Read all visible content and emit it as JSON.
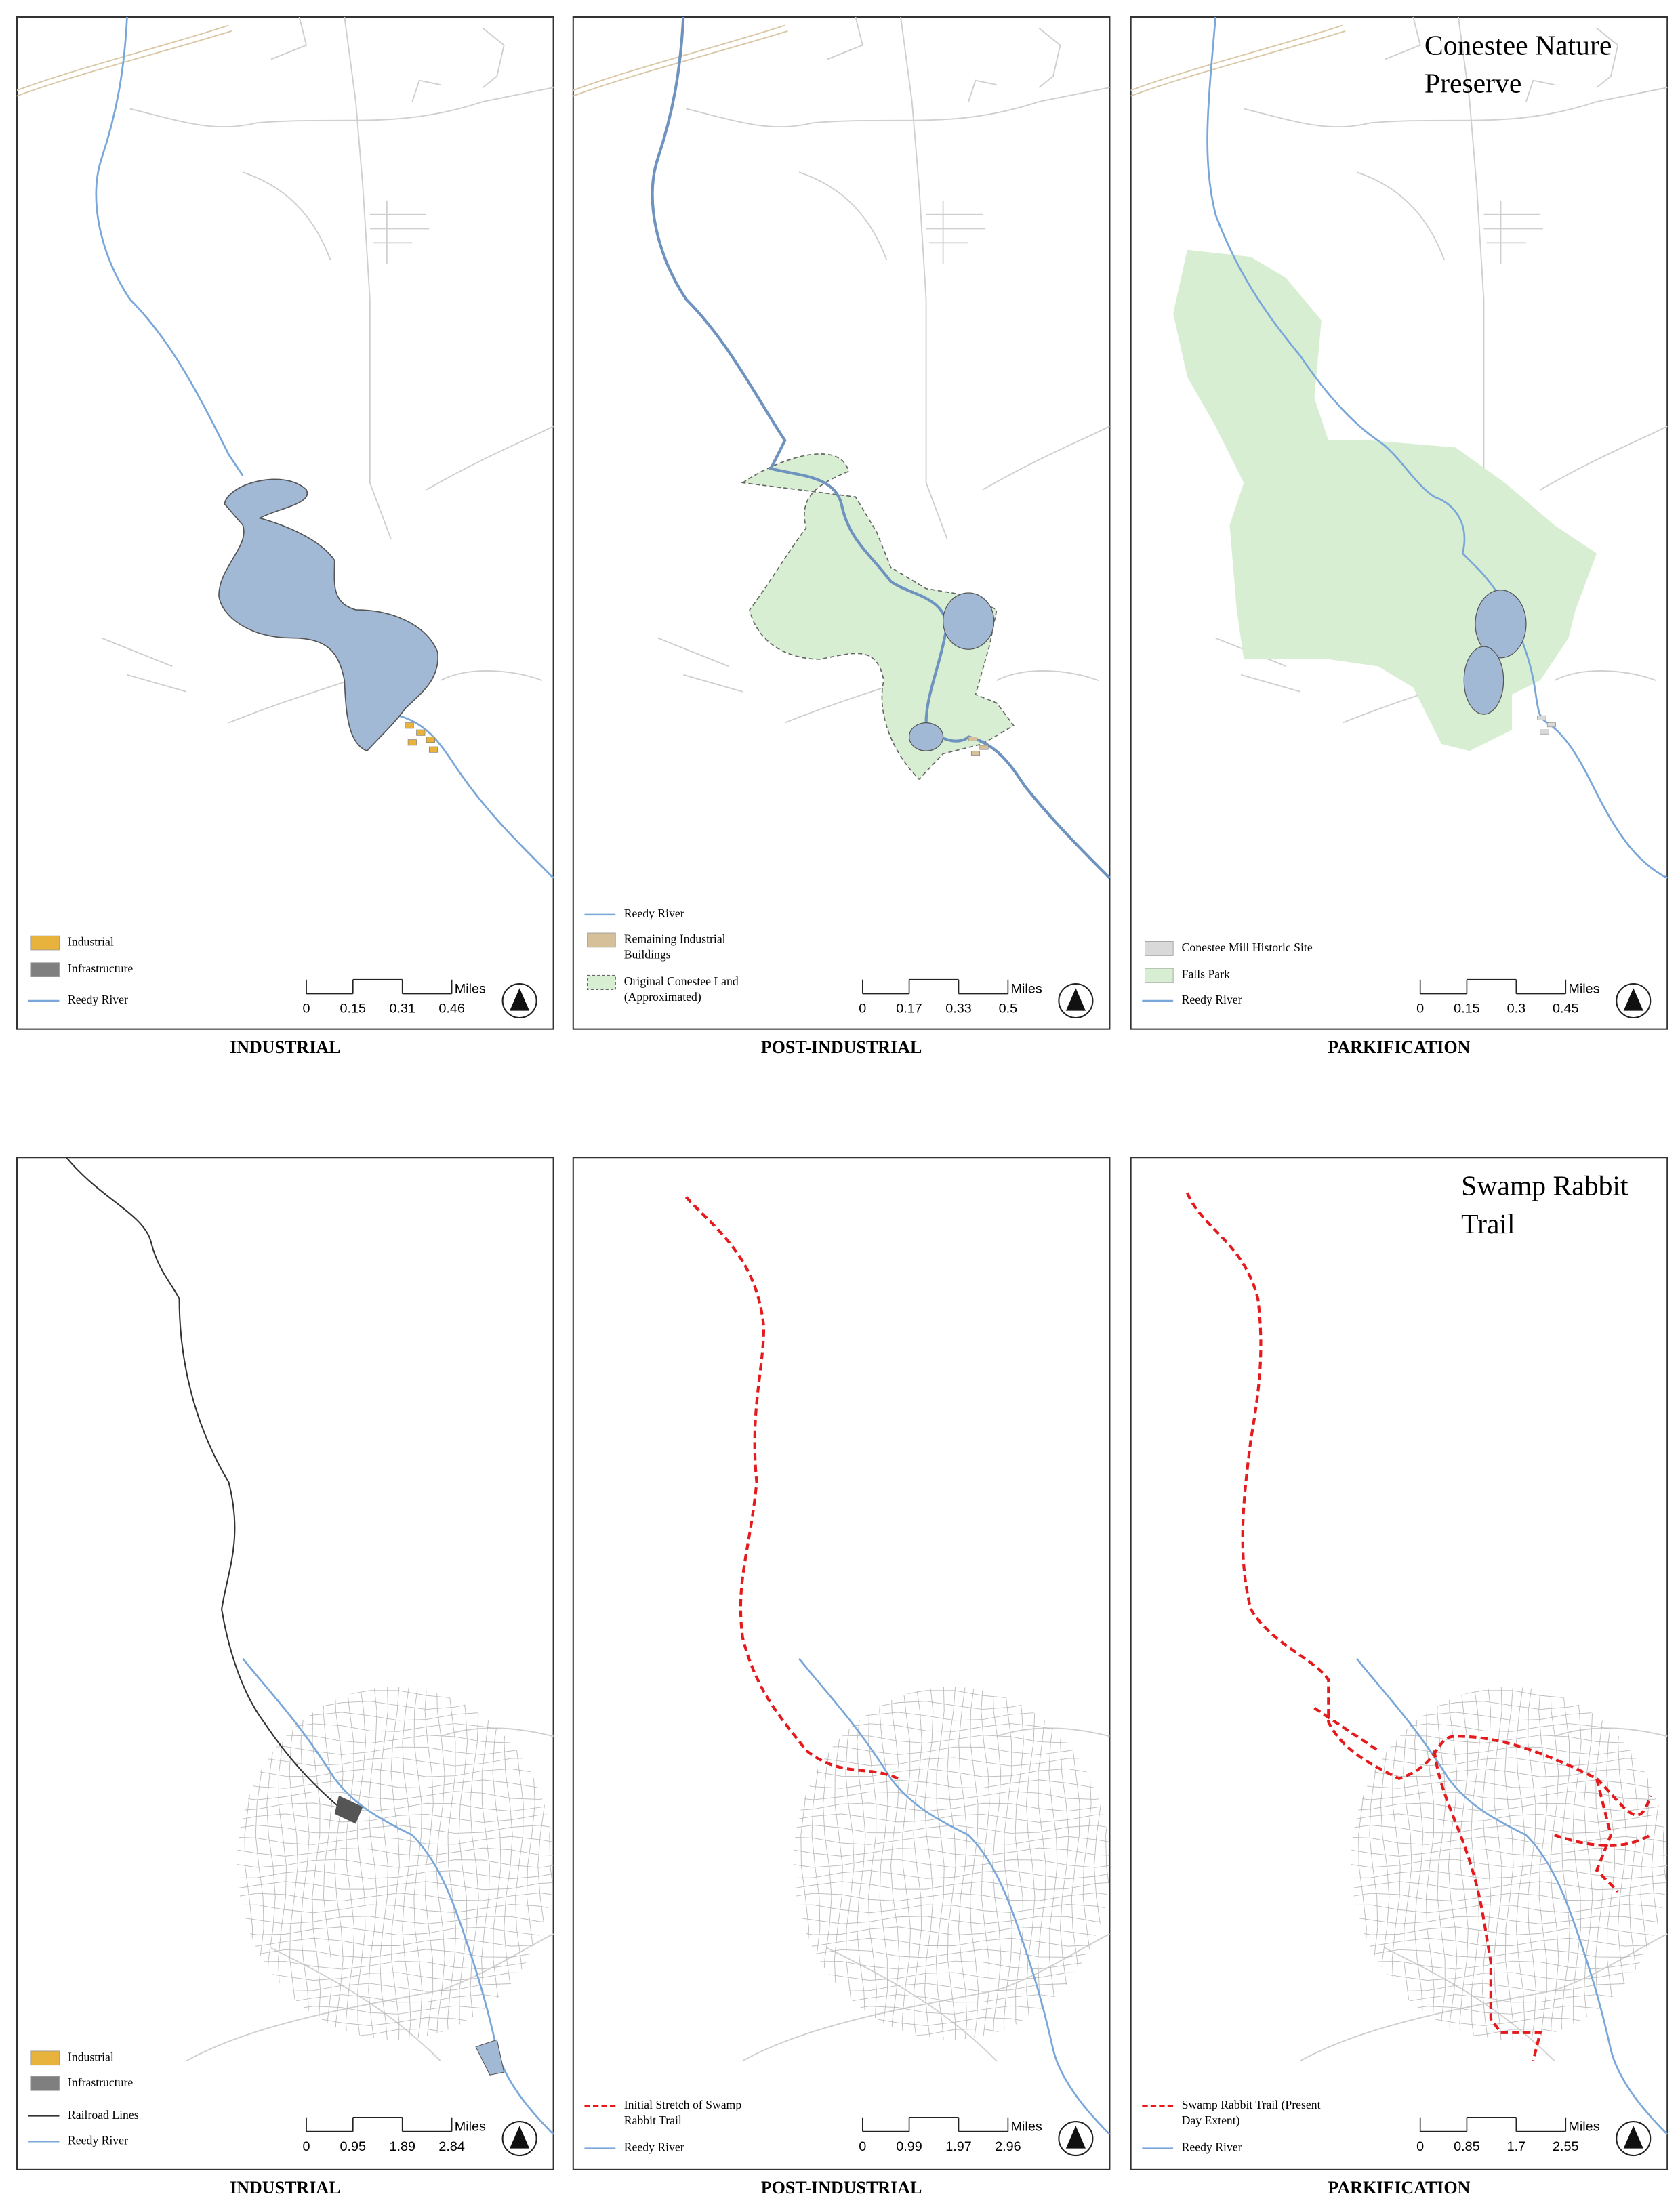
{
  "panels": [
    {
      "caption": "INDUSTRIAL",
      "legend": [
        [
          "Industrial"
        ],
        [
          "Infrastructure"
        ],
        [
          "Reedy River"
        ]
      ],
      "scale": {
        "labels": [
          "0",
          "0.15",
          "0.31",
          "0.46"
        ],
        "unit": "Miles"
      }
    },
    {
      "caption": "POST-INDUSTRIAL",
      "legend": [
        [
          "Reedy River"
        ],
        [
          "Remaining Industrial",
          "Buildings"
        ],
        [
          "Original Conestee Land",
          "(Approximated)"
        ]
      ],
      "scale": {
        "labels": [
          "0",
          "0.17",
          "0.33",
          "0.5"
        ],
        "unit": "Miles"
      }
    },
    {
      "title": [
        "Conestee Nature",
        "Preserve"
      ],
      "caption": "PARKIFICATION",
      "legend": [
        [
          "Conestee Mill Historic Site"
        ],
        [
          "Falls Park"
        ],
        [
          "Reedy River"
        ]
      ],
      "scale": {
        "labels": [
          "0",
          "0.15",
          "0.3",
          "0.45"
        ],
        "unit": "Miles"
      }
    },
    {
      "caption": "INDUSTRIAL",
      "legend": [
        [
          "Industrial"
        ],
        [
          "Infrastructure"
        ],
        [
          "Railroad Lines"
        ],
        [
          "Reedy River"
        ]
      ],
      "scale": {
        "labels": [
          "0",
          "0.95",
          "1.89",
          "2.84"
        ],
        "unit": "Miles"
      }
    },
    {
      "caption": "POST-INDUSTRIAL",
      "legend": [
        [
          "Initial Stretch of Swamp",
          "Rabbit Trail"
        ],
        [
          "Reedy River"
        ]
      ],
      "scale": {
        "labels": [
          "0",
          "0.99",
          "1.97",
          "2.96"
        ],
        "unit": "Miles"
      }
    },
    {
      "title": [
        "Swamp Rabbit",
        "Trail"
      ],
      "caption": "PARKIFICATION",
      "legend": [
        [
          "Swamp Rabbit Trail (Present",
          "Day Extent)"
        ],
        [
          "Reedy River"
        ]
      ],
      "scale": {
        "labels": [
          "0",
          "0.85",
          "1.7",
          "2.55"
        ],
        "unit": "Miles"
      }
    }
  ]
}
